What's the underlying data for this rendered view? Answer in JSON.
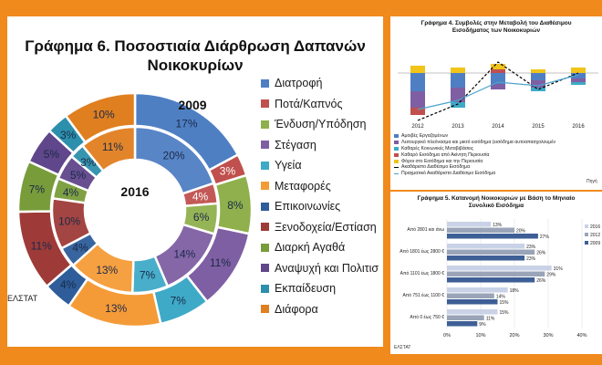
{
  "chart_data": [
    {
      "type": "donut",
      "title": "Γράφημα 6. Ποσοστιαία  Διάρθρωση Δαπανών Νοικοκυρίων",
      "title_line1": "Γράφημα 6. Ποσοστιαία  Διάρθρωση Δαπανών",
      "title_line2": "Νοικοκυρίων",
      "source": "ΕΛΣΤΑΤ",
      "categories": [
        "Διατροφή",
        "Ποτά/Καπνός",
        "Ένδυση/Υπόδηση",
        "Στέγαση",
        "Υγεία",
        "Μεταφορές",
        "Επικοινωνίες",
        "Ξενοδοχεία/Εστίαση",
        "Διαρκή Αγαθά",
        "Αναψυχή και Πολιτισμός",
        "Εκπαίδευση",
        "Διάφορα"
      ],
      "legend_labels": [
        "Διατροφή",
        "Ποτά/Καπνός",
        "Ένδυση/Υπόδηση",
        "Στέγαση",
        "Υγεία",
        "Μεταφορές",
        "Επικοινωνίες",
        "Ξενοδοχεία/Εστίαση",
        "Διαρκή Αγαθά",
        "Αναψυχή και Πολιτισ",
        "Εκπαίδευση",
        "Διάφορα"
      ],
      "colors": [
        "#4f7fc3",
        "#c0504d",
        "#8fb04c",
        "#7f5fa3",
        "#3eaac7",
        "#f49b37",
        "#2e5d9a",
        "#9e3b38",
        "#789c3a",
        "#60468a",
        "#2c8fab",
        "#e07f1f"
      ],
      "series": [
        {
          "name": "2009",
          "ring": "outer",
          "values": [
            17,
            3,
            8,
            11,
            7,
            13,
            4,
            11,
            7,
            5,
            3,
            10
          ],
          "labels": [
            "17%",
            "3%",
            "8%",
            "11%",
            "7%",
            "13%",
            "4%",
            "11%",
            "7%",
            "5%",
            "3%",
            "10%"
          ]
        },
        {
          "name": "2016",
          "ring": "inner",
          "values": [
            20,
            4,
            6,
            14,
            7,
            13,
            4,
            10,
            4,
            5,
            3,
            11
          ],
          "labels": [
            "20%",
            "4%",
            "6%",
            "14%",
            "7%",
            "13%",
            "4%",
            "10%",
            "4%",
            "5%",
            "3%",
            "11%"
          ]
        }
      ]
    },
    {
      "type": "bar+line",
      "title": "Γράφημα 4. Συμβολές στην Μεταβολή του Διαθέσιμου Εισοδήματος των Νοικοκυριών",
      "title_line1": "Γράφημα 4. Συμβολές στην Μεταβολή του Διαθέσιμου",
      "title_line2": "Εισοδήματος των Νοικοκυριών",
      "categories": [
        "2012",
        "2013",
        "2014",
        "2015",
        "2016"
      ],
      "legend": [
        "Αμοιβές Εργαζομένων",
        "Λειτουργικό πλεόνασμα και μικτό εισόδημα (εισόδημα αυτοαπασχολουμέν",
        "Καθαρές Κοινωνικές Μεταβιβάσεις",
        "Καθαρό Εισόδημα από Ακίνητη Περιουσία",
        "Φόροι στο Εισόδημα και την Περιουσία",
        "Ακαθάριστο Διαθέσιμο Εισόδημα",
        "Πραγματικό Ακαθάριστο Διαθέσιμο Εισόδημα"
      ],
      "legend_colors": [
        "#4f7fc3",
        "#7f5fa3",
        "#3eaac7",
        "#c0504d",
        "#f0c419",
        "#000000",
        "#4aa3cc"
      ],
      "source": "Πηγή"
    },
    {
      "type": "bar",
      "orientation": "horizontal",
      "title": "Γράφημα 5. Κατανομή Νοικοκυριών με Βάση το Μηνιαίο Συνολικό Εισόδημα",
      "title_line1": "Γράφημα 5. Κατανομή Νοικοκυριών με Βάση το Μηνιαίο",
      "title_line2": "Συνολικό Εισόδημα",
      "categories": [
        "Από 2801 και άνω",
        "Από 1801 έως 2800 €",
        "Από 1101 έως 1800 €",
        "Από 751 έως 1100 €",
        "Από 0 έως 750 €"
      ],
      "series": [
        {
          "name": "2016",
          "color": "#c9d2e6",
          "values": [
            13,
            23,
            31,
            18,
            15
          ]
        },
        {
          "name": "2012",
          "color": "#9aa4b8",
          "values": [
            20,
            26,
            29,
            14,
            11
          ]
        },
        {
          "name": "2009",
          "color": "#3e5f96",
          "values": [
            27,
            23,
            26,
            15,
            9
          ]
        }
      ],
      "xlim": [
        0,
        40
      ],
      "xticks": [
        "0%",
        "10%",
        "20%",
        "30%",
        "40%"
      ],
      "source": "ΕΛΣΤΑΤ"
    }
  ]
}
